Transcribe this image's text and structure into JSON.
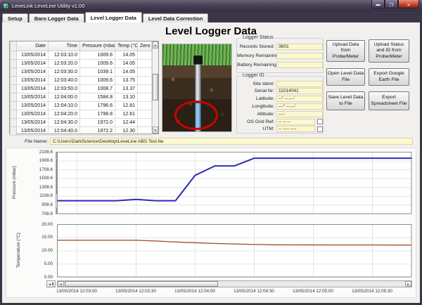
{
  "window": {
    "title": "LeveLink LeveLine Utility v1.00",
    "icons": {
      "minimize": "▬",
      "maximize": "❐",
      "close": "✕"
    }
  },
  "tabs": [
    {
      "label": "Setup",
      "active": false
    },
    {
      "label": "Baro Logger Data",
      "active": false
    },
    {
      "label": "Level Logger Data",
      "active": true
    },
    {
      "label": "Level Data Correction",
      "active": false
    }
  ],
  "heading": "Level Logger Data",
  "table": {
    "columns": [
      "Date",
      "Time",
      "Pressure (mbar)",
      "Temp (°C)",
      "Zero"
    ],
    "rows": [
      {
        "date": "13/05/2014",
        "time": "12:03:10.0",
        "pressure": "1009.6",
        "temp": "14.05",
        "zero": ""
      },
      {
        "date": "13/05/2014",
        "time": "12:03:20.0",
        "pressure": "1009.6",
        "temp": "14.05",
        "zero": ""
      },
      {
        "date": "13/05/2014",
        "time": "12:03:30.0",
        "pressure": "1039.1",
        "temp": "14.05",
        "zero": ""
      },
      {
        "date": "13/05/2014",
        "time": "12:03:40.0",
        "pressure": "1009.6",
        "temp": "13.75",
        "zero": ""
      },
      {
        "date": "13/05/2014",
        "time": "12:03:50.0",
        "pressure": "1008.7",
        "temp": "13.37",
        "zero": ""
      },
      {
        "date": "13/05/2014",
        "time": "12:04:00.0",
        "pressure": "1584.8",
        "temp": "13.10",
        "zero": ""
      },
      {
        "date": "13/05/2014",
        "time": "12:04:10.0",
        "pressure": "1796.6",
        "temp": "12.81",
        "zero": ""
      },
      {
        "date": "13/05/2014",
        "time": "12:04:20.0",
        "pressure": "1798.8",
        "temp": "12.61",
        "zero": ""
      },
      {
        "date": "13/05/2014",
        "time": "12:04:30.0",
        "pressure": "1972.0",
        "temp": "12.44",
        "zero": ""
      },
      {
        "date": "13/05/2014",
        "time": "12:04:40.0",
        "pressure": "1972.2",
        "temp": "12.30",
        "zero": ""
      }
    ]
  },
  "logger_status": {
    "title": "Logger Status",
    "fields": [
      {
        "label": "Records Stored:",
        "value": "3601"
      },
      {
        "label": "Memory Remaining:",
        "value": ""
      },
      {
        "label": "Battery Remaining:",
        "value": ""
      }
    ]
  },
  "logger_id": {
    "title": "Logger ID",
    "fields": [
      {
        "label": "Site Ident:",
        "value": ""
      },
      {
        "label": "Serial Nr:",
        "value": "11014041"
      },
      {
        "label": "Latitude:",
        "value": "--° --.---'"
      },
      {
        "label": "Longitude:",
        "value": "---° --.---'"
      },
      {
        "label": "Altitude:",
        "value": "----"
      },
      {
        "label": "OS Grid Ref:",
        "value": "-- -- --",
        "checkbox": true
      },
      {
        "label": "UTM:",
        "value": "-- ---- ----",
        "checkbox": true
      }
    ]
  },
  "buttons": {
    "upload_data": "Upload Data from Probe/Meter",
    "upload_status": "Upload Status and ID from Probe/Meter",
    "open_file": "Open Level Data File",
    "export_google": "Export Google Earth File",
    "save_file": "Save Level Data to File",
    "export_spreadsheet": "Export Spreadsheet File"
  },
  "file_name": {
    "label": "File Name:",
    "value": "C:\\Users\\DarkScience\\Desktop\\LeveLine ABS Test.llw"
  },
  "chart_data": [
    {
      "type": "line",
      "ylabel": "Pressure (mbar)",
      "color": "#2b2bb4",
      "ylim": [
        708.6,
        2108.6
      ],
      "yticks": [
        "2108.6",
        "1908.6",
        "1708.6",
        "1508.6",
        "1308.6",
        "1108.6",
        "908.6",
        "708.6"
      ],
      "ytick_values": [
        2108.6,
        1908.6,
        1708.6,
        1508.6,
        1308.6,
        1108.6,
        908.6,
        708.6
      ],
      "x_domain": [
        0,
        180
      ],
      "grid": true,
      "xticks": [
        {
          "t": 10,
          "label": "13/05/2014 12:03:00"
        },
        {
          "t": 40,
          "label": "13/05/2014 12:03:30"
        },
        {
          "t": 70,
          "label": "13/05/2014 12:04:00"
        },
        {
          "t": 100,
          "label": "13/05/2014 12:04:30"
        },
        {
          "t": 130,
          "label": "13/05/2014 12:05:00"
        },
        {
          "t": 160,
          "label": "13/05/2014 12:05:30"
        }
      ],
      "points": [
        [
          0,
          1009.6
        ],
        [
          10,
          1009.6
        ],
        [
          20,
          1009.6
        ],
        [
          30,
          1009.6
        ],
        [
          40,
          1039.1
        ],
        [
          50,
          1009.6
        ],
        [
          60,
          1008.7
        ],
        [
          70,
          1584.8
        ],
        [
          80,
          1796.6
        ],
        [
          90,
          1798.8
        ],
        [
          100,
          1972.0
        ],
        [
          110,
          1972.2
        ],
        [
          120,
          1972.2
        ],
        [
          130,
          1972.2
        ],
        [
          140,
          1972.2
        ],
        [
          150,
          1972.2
        ],
        [
          160,
          1972.2
        ],
        [
          170,
          1972.2
        ],
        [
          180,
          1972.2
        ]
      ]
    },
    {
      "type": "line",
      "ylabel": "Temperature (°C)",
      "color": "#a5552f",
      "ylim": [
        0,
        20
      ],
      "yticks": [
        "20.00",
        "15.00",
        "10.00",
        "5.00",
        "0.00"
      ],
      "ytick_values": [
        20,
        15,
        10,
        5,
        0
      ],
      "x_domain": [
        0,
        180
      ],
      "grid": true,
      "points": [
        [
          0,
          14.05
        ],
        [
          10,
          14.05
        ],
        [
          20,
          14.05
        ],
        [
          30,
          14.05
        ],
        [
          40,
          14.05
        ],
        [
          50,
          13.75
        ],
        [
          60,
          13.37
        ],
        [
          70,
          13.1
        ],
        [
          80,
          12.81
        ],
        [
          90,
          12.61
        ],
        [
          100,
          12.44
        ],
        [
          110,
          12.3
        ],
        [
          120,
          12.29
        ],
        [
          130,
          12.27
        ],
        [
          140,
          12.26
        ],
        [
          150,
          12.25
        ],
        [
          160,
          12.24
        ],
        [
          170,
          12.23
        ],
        [
          180,
          12.22
        ]
      ]
    }
  ]
}
